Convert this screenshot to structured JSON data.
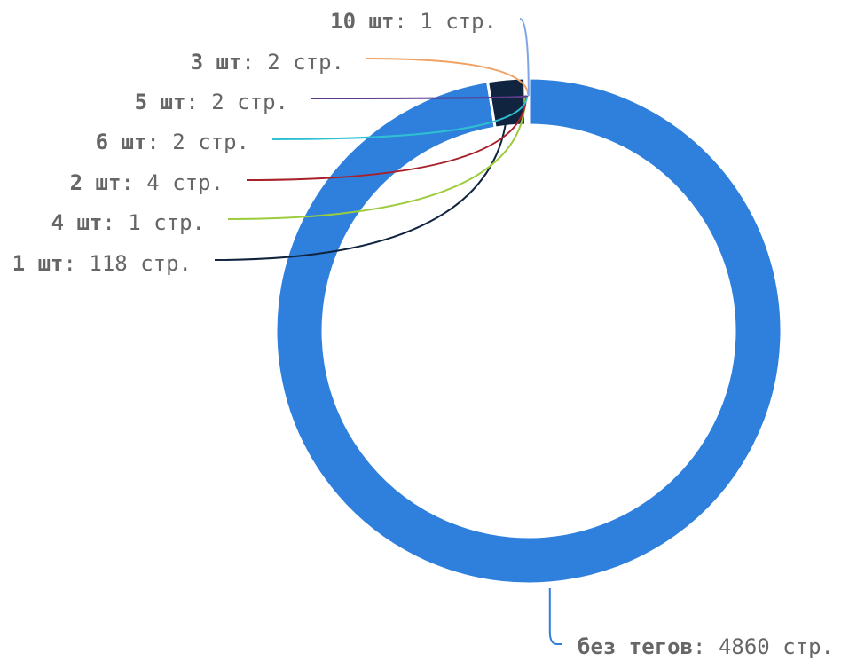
{
  "chart_data": {
    "type": "pie",
    "donut": true,
    "unit_suffix": "стр.",
    "slices": [
      {
        "label": "без тегов",
        "value": 4860,
        "color": "#2f80dc"
      },
      {
        "label": "1 шт",
        "value": 118,
        "color": "#10243f"
      },
      {
        "label": "4 шт",
        "value": 1,
        "color": "#9ccc3c"
      },
      {
        "label": "2 шт",
        "value": 4,
        "color": "#a8202a"
      },
      {
        "label": "6 шт",
        "value": 2,
        "color": "#2ec0d0"
      },
      {
        "label": "5 шт",
        "value": 2,
        "color": "#5c3a8c"
      },
      {
        "label": "3 шт",
        "value": 2,
        "color": "#f0a060"
      },
      {
        "label": "10 шт",
        "value": 1,
        "color": "#7ea6e6"
      }
    ],
    "legend": "none"
  }
}
